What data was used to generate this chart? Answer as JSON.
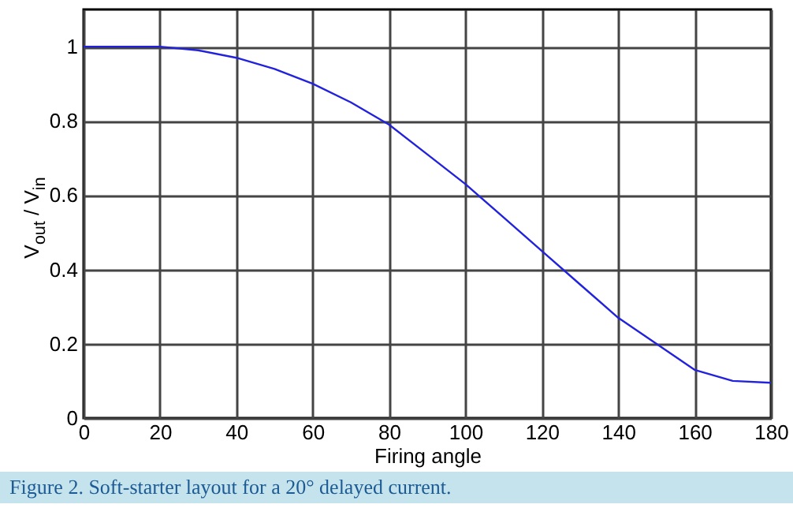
{
  "chart_data": {
    "type": "line",
    "xlabel": "Firing angle",
    "ylabel": "V$_{out}$ / V$_{in}$",
    "x": [
      0,
      10,
      20,
      30,
      40,
      50,
      60,
      70,
      80,
      90,
      100,
      110,
      120,
      130,
      140,
      150,
      160,
      170,
      180
    ],
    "series": [
      {
        "color": "#2222dd",
        "values": [
          1,
          1,
          1,
          0.99,
          0.97,
          0.94,
          0.9,
          0.85,
          0.79,
          0.71,
          0.63,
          0.54,
          0.45,
          0.36,
          0.27,
          0.2,
          0.13,
          0.1,
          0.095
        ]
      }
    ],
    "xlim": [
      0,
      180
    ],
    "xticks": [
      0,
      20,
      40,
      60,
      80,
      100,
      120,
      140,
      160,
      180
    ],
    "ylim": [
      0,
      1.1
    ],
    "yticks": [
      0,
      0.2,
      0.4,
      0.6,
      0.8,
      1
    ],
    "grid": true,
    "marker": "none",
    "line_style": "solid",
    "annotations": [
      "Figure 2. Soft-starter layout for a 20° delayed current."
    ]
  }
}
